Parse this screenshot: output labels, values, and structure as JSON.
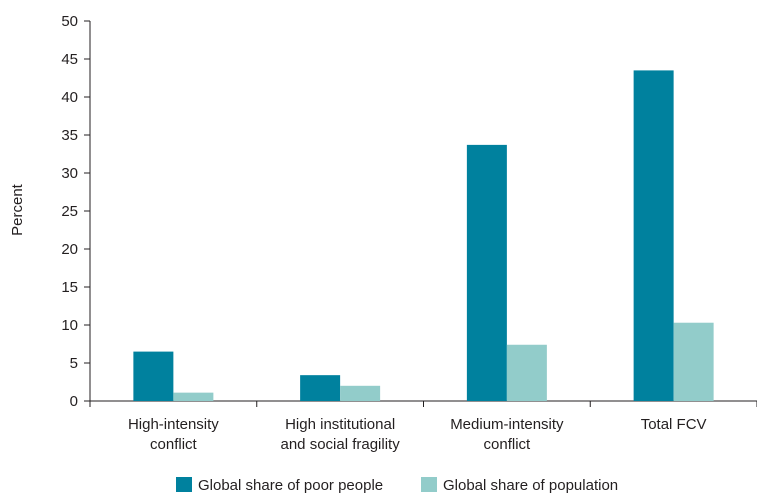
{
  "chart_data": {
    "type": "bar",
    "title": "",
    "xlabel": "",
    "ylabel": "Percent",
    "ylim": [
      0,
      50
    ],
    "yticks": [
      0,
      5,
      10,
      15,
      20,
      25,
      30,
      35,
      40,
      45,
      50
    ],
    "grid": false,
    "legend_position": "bottom",
    "categories": [
      [
        "High-intensity",
        "conflict"
      ],
      [
        "High institutional",
        "and social fragility"
      ],
      [
        "Medium-intensity",
        "conflict"
      ],
      [
        "Total FCV"
      ]
    ],
    "series": [
      {
        "name": "Global share of poor people",
        "color": "#00819e",
        "values": [
          6.5,
          3.4,
          33.7,
          43.5
        ]
      },
      {
        "name": "Global share of population",
        "color": "#92ccca",
        "values": [
          1.1,
          2.0,
          7.4,
          10.3
        ]
      }
    ]
  }
}
